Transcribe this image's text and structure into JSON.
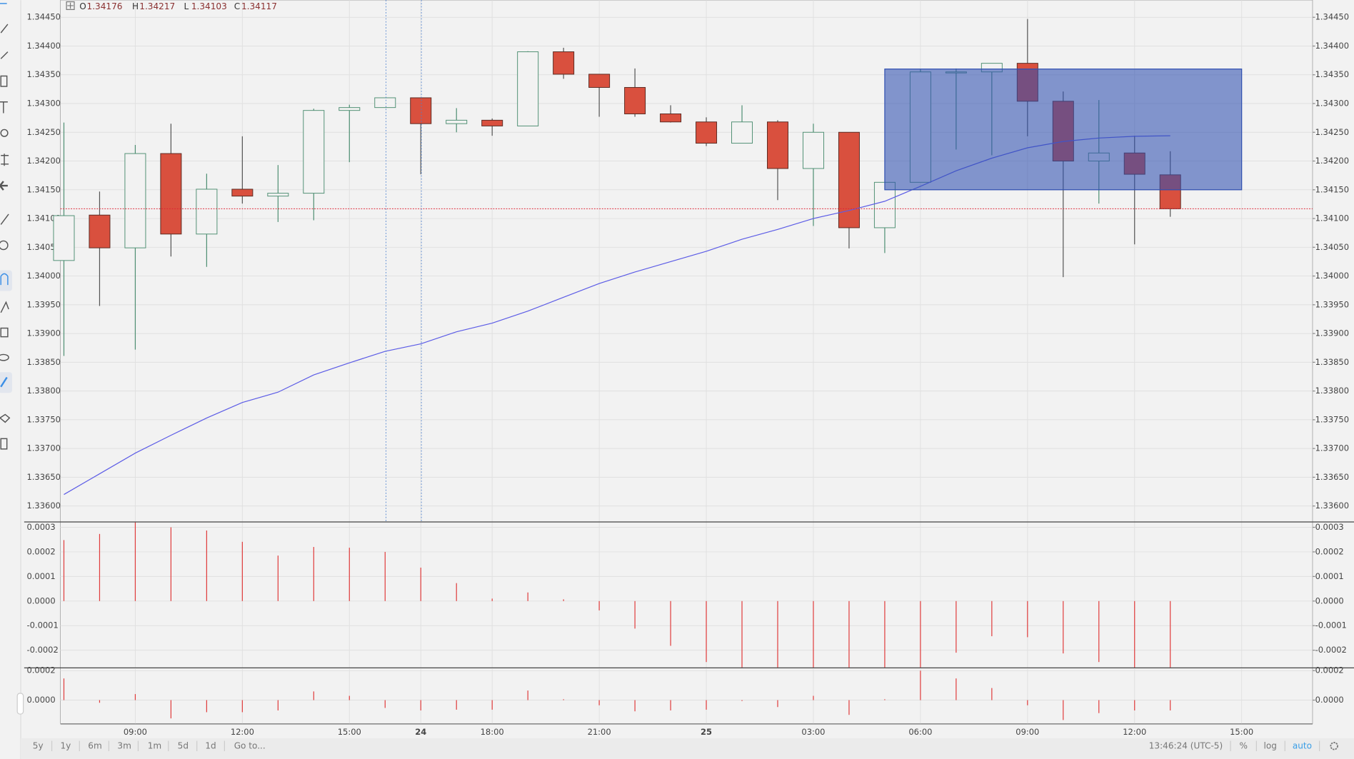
{
  "chart_data": [
    {
      "type": "candlestick",
      "categories": [
        null,
        null,
        "09:00",
        null,
        null,
        "12:00",
        null,
        null,
        "15:00",
        null,
        "24",
        null,
        "18:00",
        null,
        null,
        "21:00",
        null,
        null,
        "25",
        null,
        null,
        "03:00",
        null,
        null,
        "06:00",
        null,
        null,
        "09:00",
        null,
        null,
        "12:00",
        null,
        null,
        "15:00",
        null
      ],
      "open": [
        1.34027,
        1.34106,
        1.34049,
        1.34213,
        1.34073,
        1.34151,
        1.34139,
        1.34144,
        1.34288,
        1.34293,
        1.3431,
        1.34265,
        1.34271,
        1.34261,
        1.3439,
        1.34351,
        1.34328,
        1.34282,
        1.34268,
        1.34231,
        1.34268,
        1.34187,
        1.3425,
        1.34084,
        1.34163,
        1.34355,
        1.34355,
        1.3437,
        1.34304,
        1.342,
        1.34214,
        1.34176,
        null,
        null,
        null
      ],
      "high": [
        1.34267,
        1.34147,
        1.34228,
        1.34265,
        1.34178,
        1.34243,
        1.34193,
        1.34291,
        1.34298,
        1.3431,
        1.3431,
        1.34292,
        1.34274,
        1.34391,
        1.34397,
        1.34351,
        1.34361,
        1.34297,
        1.34276,
        1.34297,
        1.34271,
        1.34265,
        1.3425,
        1.34163,
        1.3436,
        1.34361,
        1.3437,
        1.34447,
        1.34321,
        1.34306,
        1.34244,
        1.34217,
        null,
        null,
        null
      ],
      "low": [
        1.33861,
        1.33948,
        1.33872,
        1.34034,
        1.34016,
        1.34126,
        1.34094,
        1.34097,
        1.34198,
        1.34293,
        1.34177,
        1.3425,
        1.34244,
        1.34261,
        1.34343,
        1.34277,
        1.34277,
        1.34267,
        1.34226,
        1.34231,
        1.34132,
        1.34087,
        1.34048,
        1.3404,
        1.34163,
        1.3422,
        1.3421,
        1.34243,
        1.33998,
        1.34126,
        1.34055,
        1.34103,
        null,
        null,
        null
      ],
      "close": [
        1.34105,
        1.34049,
        1.34213,
        1.34073,
        1.34151,
        1.34139,
        1.34144,
        1.34288,
        1.34293,
        1.3431,
        1.34265,
        1.34271,
        1.34261,
        1.3439,
        1.34351,
        1.34328,
        1.34282,
        1.34268,
        1.34231,
        1.34268,
        1.34187,
        1.3425,
        1.34084,
        1.34163,
        1.34355,
        1.34355,
        1.3437,
        1.34304,
        1.342,
        1.34214,
        1.34177,
        1.34117,
        null,
        null,
        null
      ],
      "up_color": "#4f8f73",
      "down_color": "#d9503e",
      "moving_average": {
        "color": "#5c5ce6",
        "values": [
          1.3362,
          1.33656,
          1.33692,
          1.33723,
          1.33753,
          1.3378,
          1.33798,
          1.33828,
          1.33849,
          1.33869,
          1.33882,
          1.33903,
          1.33918,
          1.33939,
          1.33963,
          1.33987,
          1.34007,
          1.34025,
          1.34043,
          1.34064,
          1.34081,
          1.341,
          1.34114,
          1.3413,
          1.34156,
          1.34183,
          1.34205,
          1.34223,
          1.34234,
          1.3424,
          1.34243,
          1.34244,
          null,
          null,
          null
        ]
      },
      "rectangle": {
        "top": 1.3436,
        "bottom": 1.3415,
        "color": "#2f4fb0"
      },
      "ylim": [
        1.33573,
        1.3448
      ],
      "yticks": [
        {
          "value": 1.3445,
          "label": "1.34450"
        },
        {
          "value": 1.344,
          "label": "1.34400"
        },
        {
          "value": 1.3435,
          "label": "1.34350"
        },
        {
          "value": 1.343,
          "label": "1.34300"
        },
        {
          "value": 1.3425,
          "label": "1.34250"
        },
        {
          "value": 1.342,
          "label": "1.34200"
        },
        {
          "value": 1.3415,
          "label": "1.34150"
        },
        {
          "value": 1.341,
          "label": "1.34100"
        },
        {
          "value": 1.3405,
          "label": "1.34050"
        },
        {
          "value": 1.34,
          "label": "1.34000"
        },
        {
          "value": 1.3395,
          "label": "1.33950"
        },
        {
          "value": 1.339,
          "label": "1.33900"
        },
        {
          "value": 1.3385,
          "label": "1.33850"
        },
        {
          "value": 1.338,
          "label": "1.33800"
        },
        {
          "value": 1.3375,
          "label": "1.33750"
        },
        {
          "value": 1.337,
          "label": "1.33700"
        },
        {
          "value": 1.3365,
          "label": "1.33650"
        },
        {
          "value": 1.336,
          "label": "1.33600"
        }
      ],
      "grid": true
    },
    {
      "type": "histogram",
      "color": "#e03c3c",
      "values": [
        0.000248,
        0.000273,
        0.00032,
        0.0003,
        0.000287,
        0.000241,
        0.000185,
        0.00022,
        0.000217,
        0.0002,
        0.000136,
        7.3e-05,
        1e-05,
        3.5e-05,
        7e-06,
        -3.8e-05,
        -0.000112,
        -0.000182,
        -0.000248,
        -0.00027,
        -0.00027,
        -0.00027,
        -0.00027,
        -0.00027,
        -0.00027,
        -0.00021,
        -0.000143,
        -0.000147,
        -0.000213,
        -0.000248,
        -0.00027,
        -0.00027,
        null,
        null,
        null
      ],
      "ylim": [
        -0.00027,
        0.00032
      ],
      "yticks": [
        {
          "value": 0.0003,
          "label": "0.0003"
        },
        {
          "value": 0.0002,
          "label": "0.0002"
        },
        {
          "value": 0.0001,
          "label": "0.0001"
        },
        {
          "value": 0,
          "label": "0.0000"
        },
        {
          "value": -0.0001,
          "label": "-0.0001"
        },
        {
          "value": -0.0002,
          "label": "-0.0002"
        }
      ],
      "grid": true
    },
    {
      "type": "histogram",
      "color": "#e03c3c",
      "values": [
        0.000147,
        -1.8e-05,
        4.1e-05,
        -0.000124,
        -8.2e-05,
        -8.2e-05,
        -7e-05,
        5.9e-05,
        2.9e-05,
        -5.3e-05,
        -7e-05,
        -6.5e-05,
        -6.5e-05,
        6.5e-05,
        6e-06,
        -3.5e-05,
        -7.6e-05,
        -7e-05,
        -6.5e-05,
        -6e-06,
        -4.7e-05,
        2.9e-05,
        -0.0001,
        6e-06,
        0.0002,
        0.000147,
        8.2e-05,
        -3.5e-05,
        -0.000135,
        -8.8e-05,
        -7e-05,
        -7e-05,
        null,
        null,
        null
      ],
      "ylim": [
        -0.000159,
        0.00021
      ],
      "yticks": [
        {
          "value": 0.0002,
          "label": "0.0002"
        },
        {
          "value": 0,
          "label": "0.0000"
        }
      ],
      "grid": true
    }
  ],
  "legend": {
    "labels": [
      "O",
      "H",
      "L",
      "C"
    ]
  },
  "toolbar": {
    "ranges": [
      "5y",
      "1y",
      "6m",
      "3m",
      "1m",
      "5d",
      "1d"
    ],
    "goto": "Go to...",
    "clock": "13:46:24 (UTC-5)",
    "percent": "%",
    "log": "log",
    "auto": "auto"
  }
}
